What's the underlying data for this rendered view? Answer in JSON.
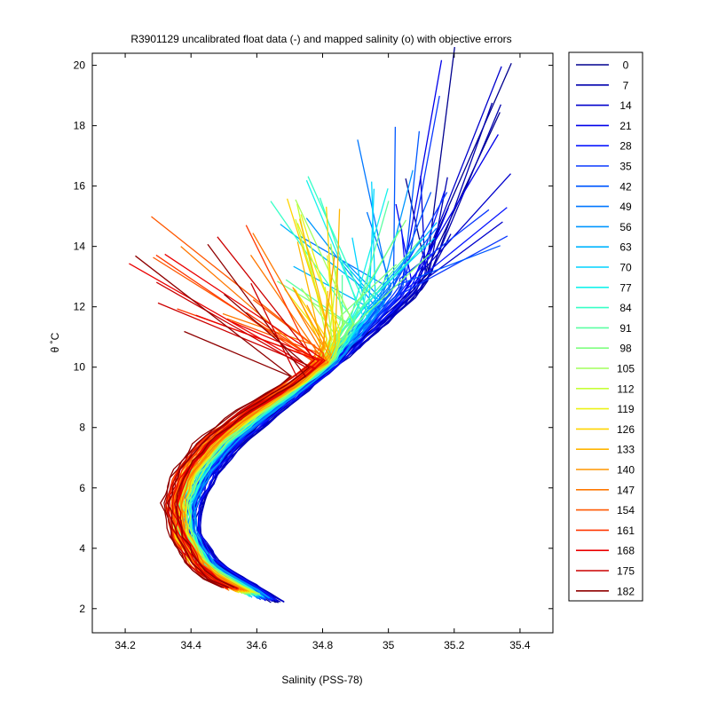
{
  "chart_data": {
    "type": "line",
    "title": "R3901129 uncalibrated float data (-) and mapped salinity (o) with objective errors",
    "xlabel": "Salinity (PSS-78)",
    "ylabel": "θ ˚C",
    "xlim": [
      34.1,
      35.5
    ],
    "ylim": [
      1.2,
      20.4
    ],
    "xticks": [
      "34.2",
      "34.4",
      "34.6",
      "34.8",
      "35",
      "35.2",
      "35.4"
    ],
    "yticks": [
      "2",
      "4",
      "6",
      "8",
      "10",
      "12",
      "14",
      "16",
      "18",
      "20"
    ],
    "grid": false,
    "legend_position": "outside-right",
    "colormap": "jet",
    "series": [
      {
        "name": "0",
        "color": "#00008f"
      },
      {
        "name": "7",
        "color": "#0000ad"
      },
      {
        "name": "14",
        "color": "#0000cc"
      },
      {
        "name": "21",
        "color": "#0000ea"
      },
      {
        "name": "28",
        "color": "#0b18ff"
      },
      {
        "name": "35",
        "color": "#0a38ff"
      },
      {
        "name": "42",
        "color": "#0058ff"
      },
      {
        "name": "49",
        "color": "#0077ff"
      },
      {
        "name": "56",
        "color": "#0096ff"
      },
      {
        "name": "63",
        "color": "#00b5ff"
      },
      {
        "name": "70",
        "color": "#00d4ff"
      },
      {
        "name": "77",
        "color": "#16f2ec"
      },
      {
        "name": "84",
        "color": "#38ffc6"
      },
      {
        "name": "91",
        "color": "#5cffa3"
      },
      {
        "name": "98",
        "color": "#80ff80"
      },
      {
        "name": "105",
        "color": "#a3ff5c"
      },
      {
        "name": "112",
        "color": "#c6ff38"
      },
      {
        "name": "119",
        "color": "#ecf216"
      },
      {
        "name": "126",
        "color": "#ffd400"
      },
      {
        "name": "133",
        "color": "#ffb500"
      },
      {
        "name": "140",
        "color": "#ff9600"
      },
      {
        "name": "147",
        "color": "#ff7700"
      },
      {
        "name": "154",
        "color": "#ff5800"
      },
      {
        "name": "161",
        "color": "#ff3800"
      },
      {
        "name": "168",
        "color": "#ea0000"
      },
      {
        "name": "175",
        "color": "#cc0000"
      },
      {
        "name": "182",
        "color": "#8f0000"
      }
    ]
  }
}
